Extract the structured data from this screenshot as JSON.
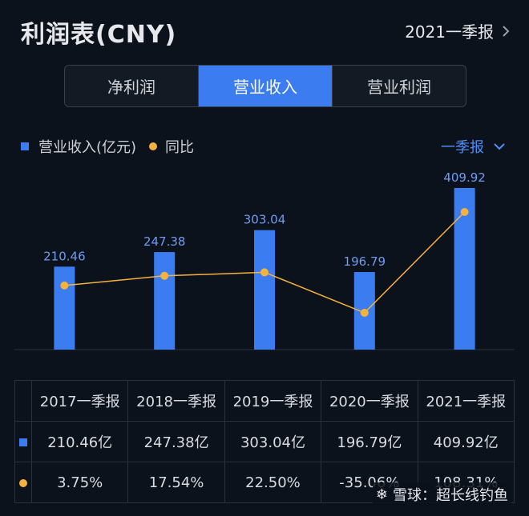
{
  "header": {
    "title": "利润表(CNY)",
    "period": "2021一季报"
  },
  "tabs": [
    {
      "label": "净利润",
      "active": false
    },
    {
      "label": "营业收入",
      "active": true
    },
    {
      "label": "营业利润",
      "active": false
    }
  ],
  "legend": {
    "bar_label": "营业收入(亿元)",
    "line_label": "同比",
    "report_type": "一季报"
  },
  "colors": {
    "accent": "#3b7cf0",
    "line": "#f4b23e",
    "positive": "#e85c5c",
    "negative": "#44c46a"
  },
  "chart_data": {
    "type": "bar",
    "categories": [
      "2017一季报",
      "2018一季报",
      "2019一季报",
      "2020一季报",
      "2021一季报"
    ],
    "series": [
      {
        "name": "营业收入(亿元)",
        "values": [
          210.46,
          247.38,
          303.04,
          196.79,
          409.92
        ],
        "labels": [
          "210.46",
          "247.38",
          "303.04",
          "196.79",
          "409.92"
        ]
      },
      {
        "name": "同比",
        "values": [
          3.75,
          17.54,
          22.5,
          -35.06,
          108.31
        ]
      }
    ]
  },
  "table": {
    "headers": [
      "2017一季报",
      "2018一季报",
      "2019一季报",
      "2020一季报",
      "2021一季报"
    ],
    "revenue": [
      "210.46亿",
      "247.38亿",
      "303.04亿",
      "196.79亿",
      "409.92亿"
    ],
    "yoy": [
      "3.75%",
      "17.54%",
      "22.50%",
      "-35.06%",
      "108.31%"
    ]
  },
  "watermark": "雪球：超长线钓鱼"
}
